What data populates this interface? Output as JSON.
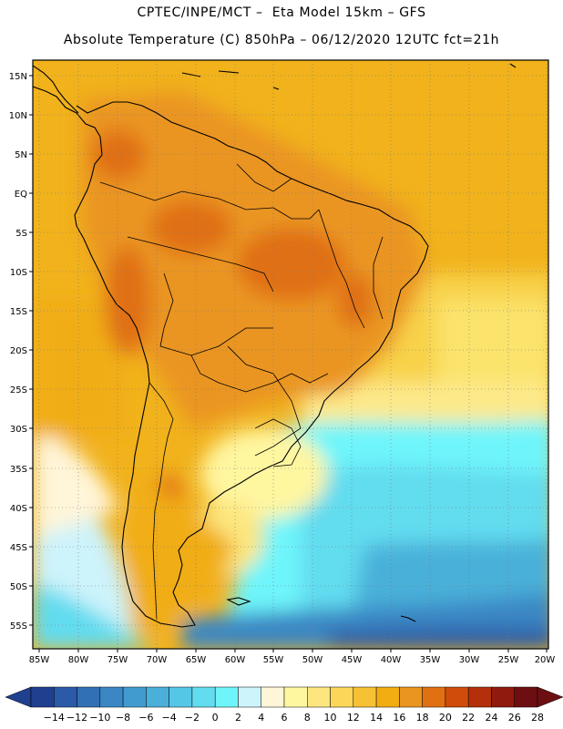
{
  "header": {
    "line1": "CPTEC/INPE/MCT –  Eta Model 15km – GFS",
    "line2": "Absolute Temperature (C) 850hPa – 06/12/2020 12UTC fct=21h"
  },
  "map": {
    "lat_labels": [
      "15N",
      "10N",
      "5N",
      "EQ",
      "5S",
      "10S",
      "15S",
      "20S",
      "25S",
      "30S",
      "35S",
      "40S",
      "45S",
      "50S",
      "55S"
    ],
    "lon_labels": [
      "85W",
      "80W",
      "75W",
      "70W",
      "65W",
      "60W",
      "55W",
      "50W",
      "45W",
      "40W",
      "35W",
      "30W",
      "25W",
      "20W"
    ]
  },
  "colorbar": {
    "labels": [
      "-14",
      "-12",
      "-10",
      "-8",
      "-6",
      "-4",
      "-2",
      "0",
      "2",
      "4",
      "6",
      "8",
      "10",
      "12",
      "14",
      "16",
      "18",
      "20",
      "22",
      "24",
      "26",
      "28"
    ],
    "colors": [
      "#1f3f8f",
      "#2a5aa8",
      "#3270b5",
      "#3b87c4",
      "#429bcf",
      "#4ab0d9",
      "#56c6e6",
      "#62dcef",
      "#6ef5fb",
      "#cdf3fb",
      "#fff5d8",
      "#fff6a0",
      "#fde67e",
      "#fcd658",
      "#f6c233",
      "#f1ad12",
      "#ea9520",
      "#e07012",
      "#cf4c0a",
      "#b4300a",
      "#8f1a0d",
      "#6d0f12"
    ]
  }
}
